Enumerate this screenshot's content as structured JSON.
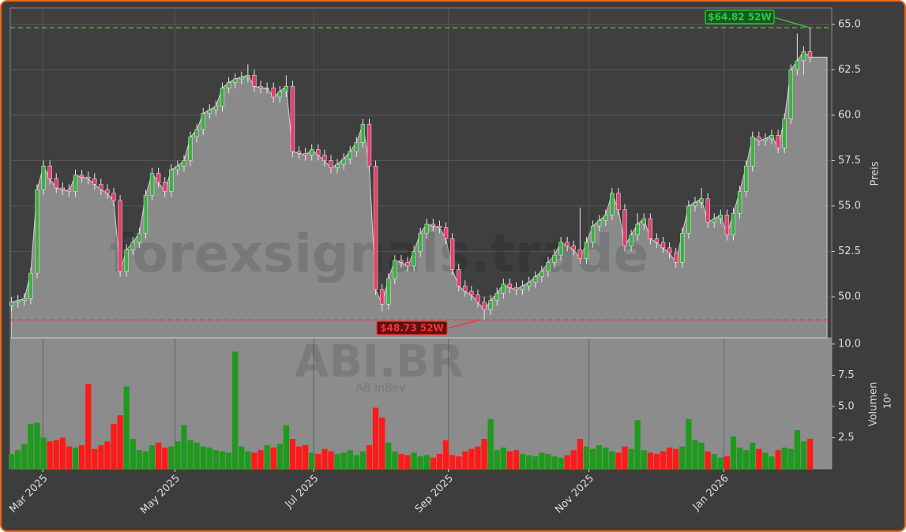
{
  "chart_data": {
    "type": "candlestick",
    "watermark": "forexsignals.trade",
    "symbol": "ABI.BR",
    "company": "AB InBev",
    "y_label": "Preis",
    "y2_label": "Volumen",
    "y2_offset": "10⁶",
    "up_color": "#1f9a1f",
    "down_color": "#ff1a1a",
    "area_color": "#8a8a8a",
    "grid": true,
    "xlim": [
      -0.2,
      128.4
    ],
    "xticks": [
      {
        "value": 4.9,
        "label": "Mar 2025"
      },
      {
        "value": 25.6,
        "label": "May 2025"
      },
      {
        "value": 47.3,
        "label": "Jul 2025"
      },
      {
        "value": 68.4,
        "label": "Sep 2025"
      },
      {
        "value": 90.4,
        "label": "Nov 2025"
      },
      {
        "value": 111.5,
        "label": "Jan 2026"
      }
    ],
    "ylim": [
      47.74,
      65.91
    ],
    "yticks": [
      {
        "value": 50,
        "label": "50.0"
      },
      52.5,
      {
        "value": 55,
        "label": "55.0"
      },
      57.5,
      {
        "value": 60,
        "label": "60.0"
      },
      62.5,
      {
        "value": 65,
        "label": "65.0"
      }
    ],
    "y2lim": [
      0,
      10.5
    ],
    "y2ticks": [
      2.5,
      {
        "value": 5,
        "label": "5.0"
      },
      7.5,
      {
        "value": 10,
        "label": "10.0"
      }
    ],
    "annotations": [
      {
        "text": "$64.82 52W",
        "value": 64.82,
        "color": "#2ecc40"
      },
      {
        "text": "$48.73 52W",
        "value": 48.73,
        "color": "#ff3030"
      }
    ],
    "open": [
      49.5,
      49.7,
      49.8,
      49.9,
      51.3,
      55.9,
      57.2,
      56.5,
      56.0,
      55.9,
      55.8,
      56.7,
      56.6,
      56.5,
      56.2,
      55.9,
      55.7,
      55.3,
      51.4,
      52.6,
      53.0,
      53.5,
      55.6,
      56.8,
      56.3,
      55.8,
      57.0,
      57.2,
      57.5,
      58.8,
      59.2,
      60.1,
      60.3,
      60.5,
      61.5,
      61.8,
      62.0,
      62.1,
      62.2,
      61.6,
      61.5,
      61.5,
      61.0,
      61.3,
      61.6,
      58.0,
      57.9,
      57.8,
      58.1,
      57.8,
      57.5,
      57.1,
      57.3,
      57.6,
      58.0,
      58.5,
      59.5,
      57.2,
      50.4,
      49.6,
      51.0,
      52.0,
      51.9,
      51.7,
      52.5,
      53.5,
      54.0,
      53.9,
      53.8,
      53.2,
      51.5,
      50.6,
      50.3,
      50.1,
      49.7,
      49.3,
      49.8,
      50.2,
      50.7,
      50.5,
      50.4,
      50.6,
      50.8,
      51.1,
      51.4,
      51.9,
      52.3,
      53.0,
      52.8,
      52.6,
      52.1,
      53.0,
      53.9,
      54.2,
      54.5,
      55.7,
      54.8,
      52.8,
      53.4,
      54.0,
      54.3,
      53.2,
      53.0,
      52.7,
      52.4,
      51.9,
      53.5,
      55.0,
      55.2,
      55.4,
      54.1,
      54.3,
      54.5,
      53.4,
      54.6,
      55.8,
      57.2,
      58.8,
      58.6,
      58.7,
      58.9,
      58.2,
      59.8,
      62.5,
      63.0,
      63.5
    ],
    "high": [
      50.0,
      50.1,
      50.2,
      51.6,
      56.2,
      57.5,
      57.5,
      56.8,
      56.3,
      56.2,
      57.0,
      57.0,
      56.9,
      56.8,
      56.5,
      56.2,
      56.0,
      55.6,
      52.9,
      53.3,
      53.8,
      55.9,
      57.1,
      57.1,
      56.6,
      57.3,
      57.5,
      57.8,
      59.1,
      59.5,
      60.4,
      60.6,
      60.8,
      61.8,
      62.1,
      62.3,
      62.4,
      62.8,
      62.5,
      61.9,
      61.8,
      61.8,
      61.6,
      62.2,
      61.9,
      58.3,
      58.2,
      58.4,
      58.4,
      58.1,
      57.8,
      57.6,
      57.9,
      58.3,
      58.8,
      59.8,
      59.8,
      57.5,
      50.7,
      51.3,
      52.3,
      52.3,
      52.2,
      52.8,
      53.8,
      54.3,
      54.3,
      54.2,
      54.1,
      53.5,
      51.8,
      50.9,
      50.6,
      50.4,
      50.0,
      50.1,
      50.5,
      51.0,
      51.0,
      50.8,
      50.9,
      51.1,
      51.4,
      51.7,
      52.2,
      52.6,
      53.3,
      53.3,
      53.1,
      54.9,
      53.3,
      54.2,
      54.5,
      54.8,
      56.0,
      56.0,
      55.1,
      53.7,
      54.6,
      54.6,
      54.6,
      53.5,
      53.3,
      53.0,
      52.7,
      53.8,
      55.3,
      55.5,
      56.0,
      55.7,
      54.6,
      54.8,
      54.8,
      54.9,
      56.1,
      57.5,
      59.1,
      59.1,
      59.0,
      59.2,
      59.2,
      60.1,
      62.8,
      64.5,
      63.8,
      64.82
    ],
    "low": [
      49.2,
      49.4,
      49.5,
      49.6,
      51.0,
      55.6,
      56.2,
      55.7,
      55.6,
      55.5,
      55.5,
      56.3,
      56.2,
      55.9,
      55.6,
      55.4,
      55.0,
      51.1,
      51.1,
      52.3,
      52.7,
      53.2,
      55.3,
      56.0,
      55.5,
      55.5,
      56.7,
      56.9,
      57.2,
      58.5,
      58.9,
      59.8,
      60.0,
      60.2,
      61.2,
      61.5,
      61.7,
      61.8,
      61.3,
      61.2,
      61.2,
      60.7,
      60.7,
      61.0,
      57.7,
      57.6,
      57.5,
      57.5,
      57.5,
      57.2,
      56.8,
      56.8,
      57.0,
      57.3,
      57.7,
      58.2,
      56.9,
      50.1,
      49.2,
      49.3,
      50.7,
      51.6,
      51.4,
      51.4,
      52.2,
      53.2,
      53.6,
      53.5,
      52.9,
      51.2,
      50.3,
      50.0,
      49.8,
      49.4,
      48.73,
      49.0,
      49.5,
      49.9,
      50.2,
      50.1,
      50.1,
      50.3,
      50.5,
      50.8,
      51.1,
      51.6,
      52.0,
      52.5,
      52.3,
      51.8,
      51.8,
      52.7,
      53.6,
      53.9,
      54.2,
      54.5,
      52.5,
      52.5,
      53.1,
      53.7,
      52.9,
      52.7,
      52.4,
      52.1,
      51.6,
      51.6,
      53.2,
      54.7,
      54.9,
      53.8,
      53.8,
      54.0,
      53.1,
      53.1,
      54.3,
      55.5,
      56.9,
      58.3,
      58.3,
      58.4,
      57.9,
      57.9,
      59.5,
      62.2,
      62.2,
      62.9
    ],
    "close": [
      49.7,
      49.8,
      49.9,
      51.3,
      55.9,
      57.2,
      56.5,
      56.0,
      55.9,
      55.8,
      56.7,
      56.6,
      56.5,
      56.2,
      55.9,
      55.7,
      55.3,
      51.4,
      52.6,
      53.0,
      53.5,
      55.6,
      56.8,
      56.3,
      55.8,
      57.0,
      57.2,
      57.5,
      58.8,
      59.2,
      60.1,
      60.3,
      60.5,
      61.5,
      61.8,
      62.0,
      62.1,
      62.2,
      61.6,
      61.5,
      61.5,
      61.0,
      61.3,
      61.6,
      58.0,
      57.9,
      57.8,
      58.1,
      57.8,
      57.5,
      57.1,
      57.3,
      57.6,
      58.0,
      58.5,
      59.5,
      57.2,
      50.4,
      49.6,
      51.0,
      52.0,
      51.9,
      51.7,
      52.5,
      53.5,
      54.0,
      53.9,
      53.8,
      53.2,
      51.5,
      50.6,
      50.3,
      50.1,
      49.7,
      49.3,
      49.8,
      50.2,
      50.7,
      50.5,
      50.4,
      50.6,
      50.8,
      51.1,
      51.4,
      51.9,
      52.3,
      53.0,
      52.8,
      52.6,
      52.1,
      53.0,
      53.9,
      54.2,
      54.5,
      55.7,
      54.8,
      52.8,
      53.4,
      54.0,
      54.3,
      53.2,
      53.0,
      52.7,
      52.4,
      51.9,
      53.5,
      55.0,
      55.2,
      55.4,
      54.1,
      54.3,
      54.5,
      53.4,
      54.6,
      55.8,
      57.2,
      58.8,
      58.6,
      58.7,
      58.9,
      58.2,
      59.8,
      62.5,
      63.0,
      63.5,
      63.2
    ],
    "volume": [
      1.2,
      1.5,
      2.0,
      3.6,
      3.7,
      2.5,
      2.2,
      2.3,
      2.5,
      1.8,
      1.7,
      1.9,
      6.8,
      1.6,
      1.9,
      2.2,
      3.6,
      4.3,
      6.6,
      2.4,
      1.5,
      1.4,
      1.9,
      2.1,
      1.7,
      1.8,
      2.2,
      3.5,
      2.3,
      2.1,
      1.8,
      1.7,
      1.5,
      1.4,
      1.3,
      9.4,
      1.8,
      1.4,
      1.3,
      1.5,
      1.9,
      1.7,
      2.0,
      3.5,
      2.4,
      1.8,
      1.9,
      1.3,
      1.2,
      1.6,
      1.4,
      1.2,
      1.3,
      1.5,
      1.1,
      1.4,
      1.9,
      4.9,
      4.1,
      2.1,
      1.4,
      1.2,
      1.1,
      1.3,
      1.0,
      1.1,
      0.9,
      1.2,
      2.3,
      1.1,
      1.0,
      1.4,
      1.6,
      1.8,
      2.4,
      4.0,
      1.5,
      1.7,
      1.4,
      1.5,
      1.2,
      1.1,
      1.0,
      1.3,
      1.2,
      1.0,
      0.9,
      1.1,
      1.5,
      2.4,
      1.8,
      1.6,
      1.9,
      1.7,
      1.4,
      1.3,
      1.8,
      1.6,
      3.9,
      1.5,
      1.3,
      1.2,
      1.4,
      1.7,
      1.6,
      1.8,
      4.0,
      2.3,
      2.1,
      1.4,
      1.2,
      0.9,
      1.0,
      2.6,
      1.7,
      1.5,
      2.1,
      1.6,
      1.3,
      1.0,
      1.5,
      1.7,
      1.6,
      3.1,
      2.2,
      2.4
    ]
  }
}
